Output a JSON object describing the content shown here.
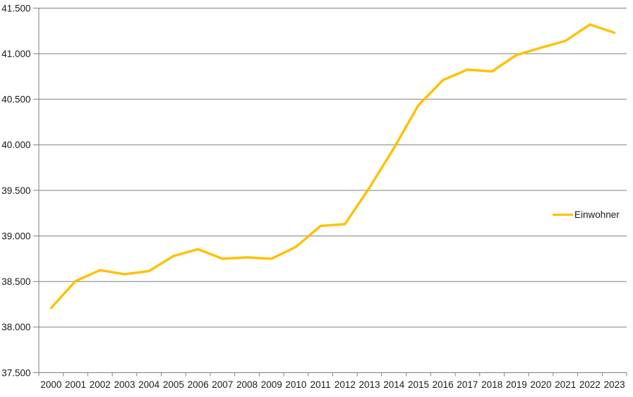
{
  "chart_data": {
    "type": "line",
    "title": "",
    "legend": "Einwohner",
    "legend_position": "right",
    "categories": [
      "2000",
      "2001",
      "2002",
      "2003",
      "2004",
      "2005",
      "2006",
      "2007",
      "2008",
      "2009",
      "2010",
      "2011",
      "2012",
      "2013",
      "2014",
      "2015",
      "2016",
      "2017",
      "2018",
      "2019",
      "2020",
      "2021",
      "2022",
      "2023"
    ],
    "series": [
      {
        "name": "Einwohner",
        "color": "#FFC000",
        "values": [
          38210,
          38505,
          38625,
          38580,
          38615,
          38780,
          38855,
          38750,
          38765,
          38750,
          38880,
          39110,
          39130,
          39530,
          39965,
          40435,
          40710,
          40825,
          40805,
          40985,
          41065,
          41140,
          41320,
          41230
        ]
      }
    ],
    "xlabel": "",
    "ylabel": "",
    "ylim": [
      37500,
      41500
    ],
    "ytick_step": 500,
    "ytick_labels": [
      "41.500",
      "41.000",
      "40.500",
      "40.000",
      "39.500",
      "39.000",
      "38.500",
      "38.000",
      "37.500"
    ],
    "grid": true,
    "axis_color": "#7f7f7f",
    "text_color": "#1a1a1a",
    "background": "#ffffff"
  }
}
